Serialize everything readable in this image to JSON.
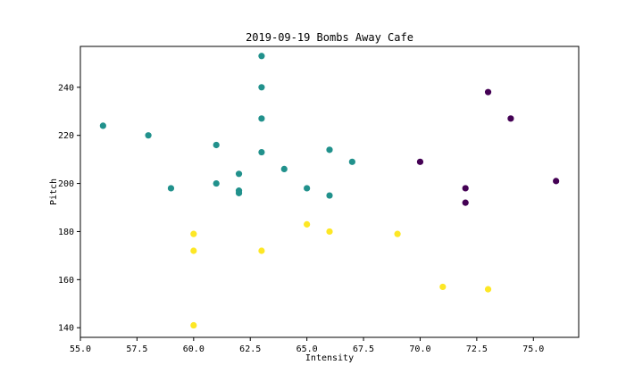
{
  "chart_data": {
    "type": "scatter",
    "title": "2019-09-19 Bombs Away Cafe",
    "xlabel": "Intensity",
    "ylabel": "Pitch",
    "xlim": [
      55.0,
      77.0
    ],
    "ylim": [
      136,
      257
    ],
    "xticks": [
      "55.0",
      "57.5",
      "60.0",
      "62.5",
      "65.0",
      "67.5",
      "70.0",
      "72.5",
      "75.0"
    ],
    "yticks": [
      "140",
      "160",
      "180",
      "200",
      "220",
      "240"
    ],
    "grid": false,
    "legend": "none",
    "cluster_colors": [
      "#440154",
      "#21918c",
      "#fde725"
    ],
    "points": [
      {
        "x": 70,
        "y": 209,
        "cluster": 0
      },
      {
        "x": 72,
        "y": 198,
        "cluster": 0
      },
      {
        "x": 72,
        "y": 192,
        "cluster": 0
      },
      {
        "x": 73,
        "y": 238,
        "cluster": 0
      },
      {
        "x": 74,
        "y": 227,
        "cluster": 0
      },
      {
        "x": 76,
        "y": 201,
        "cluster": 0
      },
      {
        "x": 56,
        "y": 224,
        "cluster": 1
      },
      {
        "x": 58,
        "y": 220,
        "cluster": 1
      },
      {
        "x": 59,
        "y": 198,
        "cluster": 1
      },
      {
        "x": 61,
        "y": 216,
        "cluster": 1
      },
      {
        "x": 61,
        "y": 200,
        "cluster": 1
      },
      {
        "x": 62,
        "y": 204,
        "cluster": 1
      },
      {
        "x": 62,
        "y": 197,
        "cluster": 1
      },
      {
        "x": 62,
        "y": 196,
        "cluster": 1
      },
      {
        "x": 63,
        "y": 253,
        "cluster": 1
      },
      {
        "x": 63,
        "y": 240,
        "cluster": 1
      },
      {
        "x": 63,
        "y": 227,
        "cluster": 1
      },
      {
        "x": 63,
        "y": 213,
        "cluster": 1
      },
      {
        "x": 64,
        "y": 206,
        "cluster": 1
      },
      {
        "x": 65,
        "y": 198,
        "cluster": 1
      },
      {
        "x": 66,
        "y": 214,
        "cluster": 1
      },
      {
        "x": 66,
        "y": 195,
        "cluster": 1
      },
      {
        "x": 67,
        "y": 209,
        "cluster": 1
      },
      {
        "x": 60,
        "y": 179,
        "cluster": 2
      },
      {
        "x": 60,
        "y": 172,
        "cluster": 2
      },
      {
        "x": 60,
        "y": 141,
        "cluster": 2
      },
      {
        "x": 63,
        "y": 172,
        "cluster": 2
      },
      {
        "x": 65,
        "y": 183,
        "cluster": 2
      },
      {
        "x": 66,
        "y": 180,
        "cluster": 2
      },
      {
        "x": 69,
        "y": 179,
        "cluster": 2
      },
      {
        "x": 71,
        "y": 157,
        "cluster": 2
      },
      {
        "x": 73,
        "y": 156,
        "cluster": 2
      }
    ]
  }
}
